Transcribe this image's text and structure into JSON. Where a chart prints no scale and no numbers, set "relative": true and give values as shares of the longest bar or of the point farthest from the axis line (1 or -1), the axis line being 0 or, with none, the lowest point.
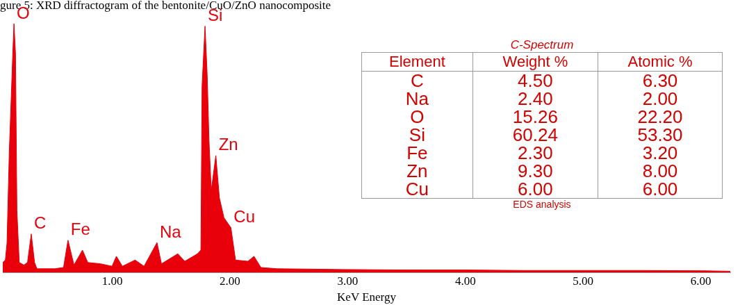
{
  "chart_data": [
    {
      "type": "area",
      "title": "gure 5: XRD diffractogram of the bentonite/CuO/ZnO nanocomposite",
      "xlabel": "KeV Energy",
      "relative": true,
      "color": "#e8000b",
      "x": [
        0.07,
        0.092,
        0.106,
        0.125,
        0.155,
        0.165,
        0.178,
        0.19,
        0.21,
        0.25,
        0.28,
        0.312,
        0.34,
        0.36,
        0.51,
        0.586,
        0.624,
        0.675,
        0.747,
        0.792,
        0.9,
        0.998,
        1.035,
        1.086,
        1.194,
        1.27,
        1.38,
        1.418,
        1.557,
        1.616,
        1.724,
        1.753,
        1.763,
        1.788,
        1.806,
        1.822,
        1.841,
        1.88,
        1.91,
        1.949,
        2.008,
        2.047,
        2.153,
        2.204,
        2.263,
        2.4,
        2.96,
        3.5,
        4.0,
        4.5,
        5.0,
        5.5,
        6.0,
        6.25
      ],
      "values": [
        0.04,
        0.05,
        0.12,
        0.48,
        0.88,
        1.0,
        0.88,
        0.25,
        0.04,
        0.03,
        0.04,
        0.155,
        0.04,
        0.015,
        0.015,
        0.02,
        0.13,
        0.03,
        0.09,
        0.04,
        0.035,
        0.025,
        0.065,
        0.025,
        0.05,
        0.025,
        0.12,
        0.035,
        0.075,
        0.045,
        0.075,
        0.09,
        0.75,
        0.99,
        0.8,
        0.53,
        0.33,
        0.47,
        0.3,
        0.22,
        0.18,
        0.05,
        0.045,
        0.065,
        0.02,
        0.015,
        0.012,
        0.01,
        0.01,
        0.008,
        0.008,
        0.008,
        0.007,
        0.005
      ],
      "xlim": [
        0.07,
        6.25
      ],
      "xticks": [
        {
          "value": 1,
          "label": "1.00"
        },
        {
          "value": 2,
          "label": "2.00"
        },
        {
          "value": 3,
          "label": "3.00"
        },
        {
          "value": 4,
          "label": "4.00"
        },
        {
          "value": 5,
          "label": "5.00"
        },
        {
          "value": 6,
          "label": "6.00"
        }
      ],
      "annotations": [
        {
          "text": "O",
          "x": 0.165,
          "y": 1.0
        },
        {
          "text": "Si",
          "x": 1.788,
          "y": 0.99
        },
        {
          "text": "C",
          "x": 0.312,
          "y": 0.155
        },
        {
          "text": "Fe",
          "x": 0.624,
          "y": 0.13
        },
        {
          "text": "Na",
          "x": 1.38,
          "y": 0.12
        },
        {
          "text": "Zn",
          "x": 1.88,
          "y": 0.47
        },
        {
          "text": "Cu",
          "x": 2.008,
          "y": 0.18
        }
      ]
    },
    {
      "type": "other",
      "title": "C-Spectrum",
      "xlabel": "Element",
      "categories": [
        "C",
        "Na",
        "O",
        "Si",
        "Fe",
        "Zn",
        "Cu"
      ],
      "series": [
        {
          "name": "Weight %",
          "values": [
            4.5,
            2.4,
            15.26,
            60.24,
            2.3,
            9.3,
            6.0
          ],
          "value_labels": [
            "4.50",
            "2.40",
            "15.26",
            "60.24",
            "2.30",
            "9.30",
            "6.00"
          ]
        },
        {
          "name": "Atomic %",
          "values": [
            6.3,
            2.0,
            22.2,
            53.3,
            3.2,
            8.0,
            6.0
          ],
          "value_labels": [
            "6.30",
            "2.00",
            "22.20",
            "53.30",
            "3.20",
            "8.00",
            "6.00"
          ]
        }
      ],
      "annotations": [
        "EDS analysis"
      ]
    }
  ]
}
